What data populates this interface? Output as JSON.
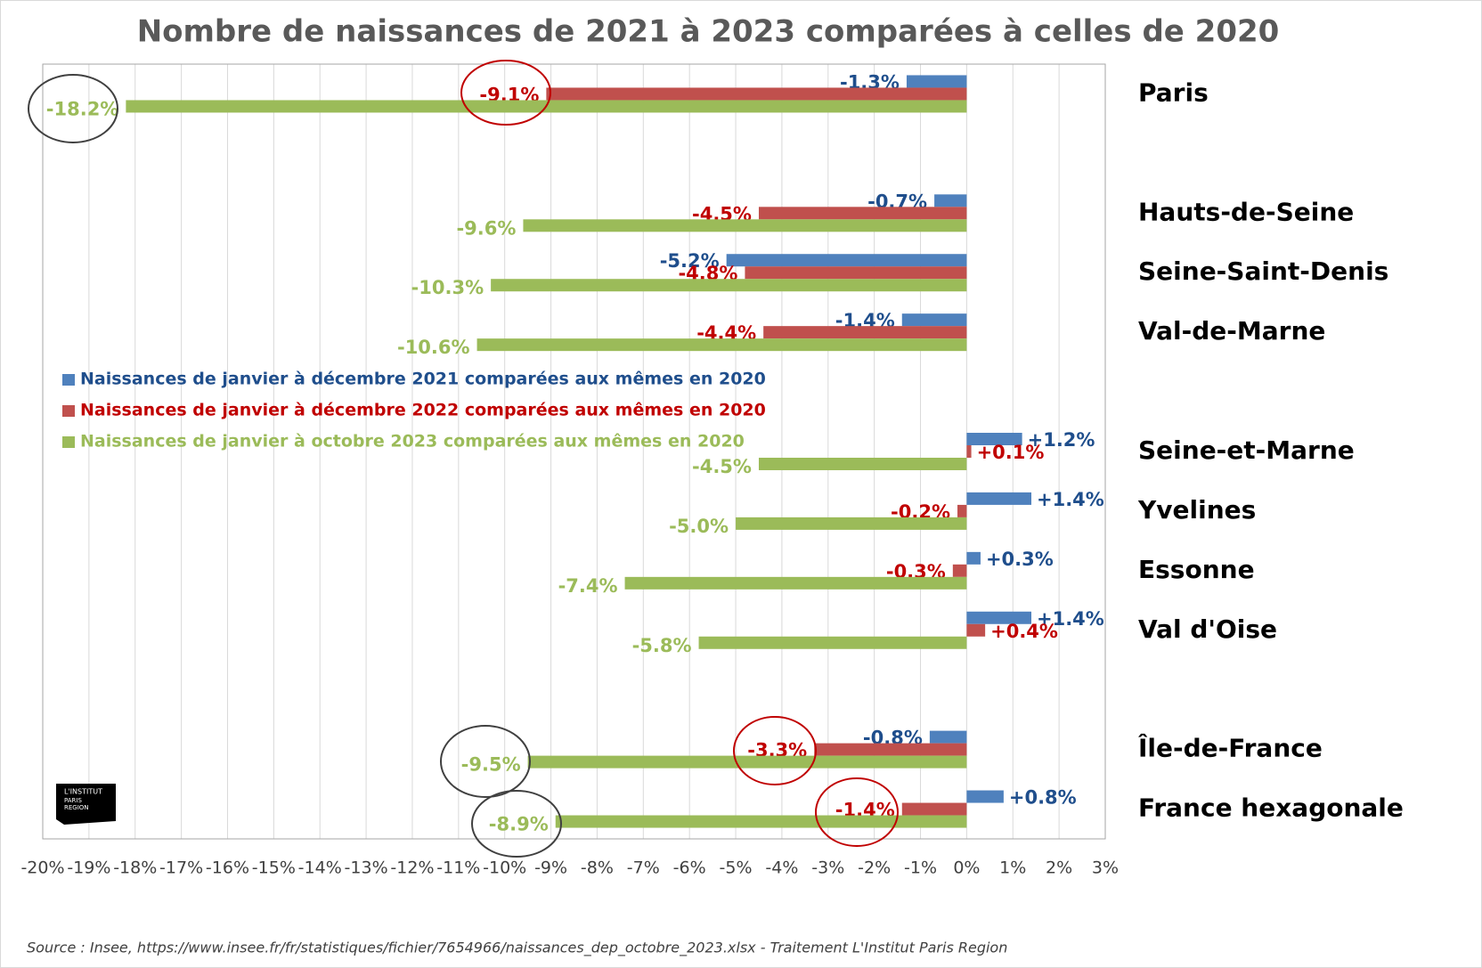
{
  "chart_data": {
    "type": "hbar",
    "title": "Nombre de naissances de 2021 à 2023 comparées à celles de 2020",
    "source": "Source : Insee, https://www.insee.fr/fr/statistiques/fichier/7654966/naissances_dep_octobre_2023.xlsx - Traitement L'Institut Paris Region",
    "logo": [
      "L'INSTITUT",
      "PARIS",
      "REGION"
    ],
    "categories": [
      "Paris",
      null,
      "Hauts-de-Seine",
      "Seine-Saint-Denis",
      "Val-de-Marne",
      null,
      "Seine-et-Marne",
      "Yvelines",
      "Essonne",
      "Val d'Oise",
      null,
      "Île-de-France",
      "France hexagonale"
    ],
    "series": [
      {
        "name": "Naissances de janvier à décembre 2021 comparées aux mêmes en 2020",
        "color": "#4f81bd",
        "label_color": "#1f4e8c",
        "values": [
          -1.3,
          null,
          -0.7,
          -5.2,
          -1.4,
          null,
          1.2,
          1.4,
          0.3,
          1.4,
          null,
          -0.8,
          0.8
        ],
        "value_labels": [
          "-1.3%",
          null,
          "-0.7%",
          "-5.2%",
          "-1.4%",
          null,
          "+1.2%",
          "+1.4%",
          "+0.3%",
          "+1.4%",
          null,
          "-0.8%",
          "+0.8%"
        ]
      },
      {
        "name": "Naissances de janvier à décembre 2022 comparées aux mêmes en 2020",
        "color": "#c0504d",
        "label_color": "#c00000",
        "values": [
          -9.1,
          null,
          -4.5,
          -4.8,
          -4.4,
          null,
          0.1,
          -0.2,
          -0.3,
          0.4,
          null,
          -3.3,
          -1.4
        ],
        "value_labels": [
          "-9.1%",
          null,
          "-4.5%",
          "-4.8%",
          "-4.4%",
          null,
          "+0.1%",
          "-0.2%",
          "-0.3%",
          "+0.4%",
          null,
          "-3.3%",
          "-1.4%"
        ]
      },
      {
        "name": "Naissances de janvier à octobre 2023 comparées aux mêmes en 2020",
        "color": "#9bbb59",
        "label_color": "#9bbb59",
        "values": [
          -18.2,
          null,
          -9.6,
          -10.3,
          -10.6,
          null,
          -4.5,
          -5.0,
          -7.4,
          -5.8,
          null,
          -9.5,
          -8.9
        ],
        "value_labels": [
          "-18.2%",
          null,
          "-9.6%",
          "-10.3%",
          "-10.6%",
          null,
          "-4.5%",
          "-5.0%",
          "-7.4%",
          "-5.8%",
          null,
          "-9.5%",
          "-8.9%"
        ]
      }
    ],
    "xlim": [
      -20,
      3
    ],
    "xticks": [
      {
        "value": -20,
        "label": "-20%"
      },
      {
        "value": -19,
        "label": "-19%"
      },
      {
        "value": -18,
        "label": "-18%"
      },
      {
        "value": -17,
        "label": "-17%"
      },
      {
        "value": -16,
        "label": "-16%"
      },
      {
        "value": -15,
        "label": "-15%"
      },
      {
        "value": -14,
        "label": "-14%"
      },
      {
        "value": -13,
        "label": "-13%"
      },
      {
        "value": -12,
        "label": "-12%"
      },
      {
        "value": -11,
        "label": "-11%"
      },
      {
        "value": -10,
        "label": "-10%"
      },
      {
        "value": -9,
        "label": "-9%"
      },
      {
        "value": -8,
        "label": "-8%"
      },
      {
        "value": -7,
        "label": "-7%"
      },
      {
        "value": -6,
        "label": "-6%"
      },
      {
        "value": -5,
        "label": "-5%"
      },
      {
        "value": -4,
        "label": "-4%"
      },
      {
        "value": -3,
        "label": "-3%"
      },
      {
        "value": -2,
        "label": "-2%"
      },
      {
        "value": -1,
        "label": "-1%"
      },
      {
        "value": 0,
        "label": "0%"
      },
      {
        "value": 1,
        "label": "1%"
      },
      {
        "value": 2,
        "label": "2%"
      },
      {
        "value": 3,
        "label": "3%"
      }
    ],
    "grid": true
  }
}
